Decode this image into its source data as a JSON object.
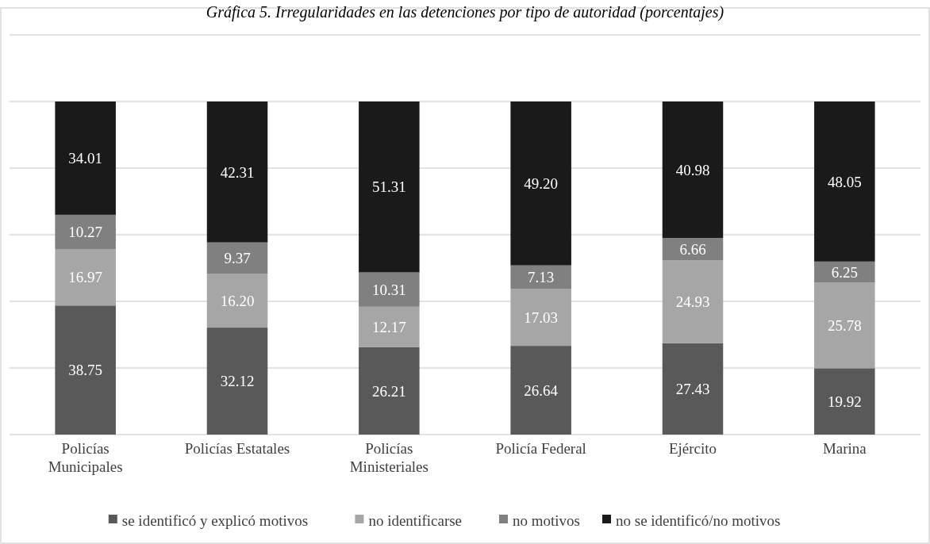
{
  "chart_data": {
    "type": "bar",
    "stacked": true,
    "title": "Gráfica 5. Irregularidades en las detenciones por tipo de autoridad (porcentajes)",
    "categories": [
      "Policías Municipales",
      "Policías Estatales",
      "Policías Ministeriales",
      "Policía Federal",
      "Ejército",
      "Marina"
    ],
    "series": [
      {
        "name": "se identificó y explicó motivos",
        "color": "#595959",
        "values": [
          38.75,
          32.12,
          26.21,
          26.64,
          27.43,
          19.92
        ],
        "value_labels": [
          "38.75",
          "32.12",
          "26.21",
          "26.64",
          "27.43",
          "19.92"
        ]
      },
      {
        "name": "no identificarse",
        "color": "#a6a6a6",
        "values": [
          16.97,
          16.2,
          12.17,
          17.03,
          24.93,
          25.78
        ],
        "value_labels": [
          "16.97",
          "16.20",
          "12.17",
          "17.03",
          "24.93",
          "25.78"
        ]
      },
      {
        "name": "no motivos",
        "color": "#808080",
        "values": [
          10.27,
          9.37,
          10.31,
          7.13,
          6.66,
          6.25
        ],
        "value_labels": [
          "10.27",
          "9.37",
          "10.31",
          "7.13",
          "6.66",
          "6.25"
        ]
      },
      {
        "name": "no se identificó/no motivos",
        "color": "#1a1a1a",
        "values": [
          34.01,
          42.31,
          51.31,
          49.2,
          40.98,
          48.05
        ],
        "value_labels": [
          "34.01",
          "42.31",
          "51.31",
          "49.20",
          "40.98",
          "48.05"
        ]
      }
    ],
    "ylim": [
      0,
      120
    ],
    "yticks": [
      {
        "value": 0,
        "label": null
      },
      {
        "value": 20,
        "label": null
      },
      {
        "value": 40,
        "label": null
      },
      {
        "value": 60,
        "label": null
      },
      {
        "value": 80,
        "label": null
      },
      {
        "value": 100,
        "label": null
      },
      {
        "value": 120,
        "label": null
      }
    ],
    "tick_labels": "x",
    "grid": "y",
    "legend": "bottom"
  }
}
